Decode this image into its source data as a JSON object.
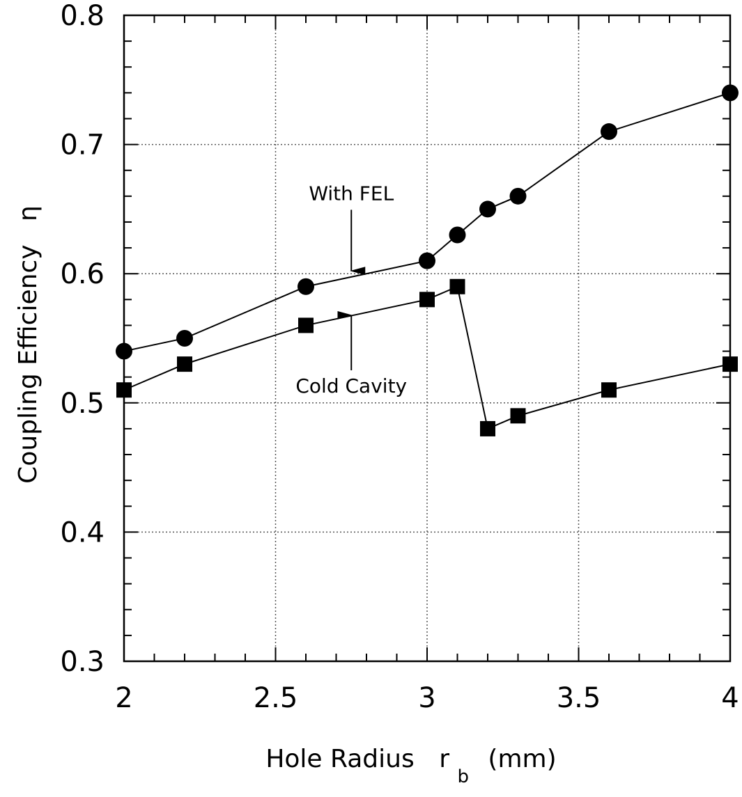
{
  "chart_data": {
    "type": "line",
    "xlabel": "Hole Radius",
    "xlabel_symbol": "r",
    "xlabel_subscript": "b",
    "xlabel_unit": "(mm)",
    "ylabel": "Coupling Efficiency",
    "ylabel_symbol": "η",
    "xlim": [
      2,
      4
    ],
    "ylim": [
      0.3,
      0.8
    ],
    "xticks": [
      2,
      2.5,
      3,
      3.5,
      4
    ],
    "xtick_labels": [
      "2",
      "2.5",
      "3",
      "3.5",
      "4"
    ],
    "yticks": [
      0.3,
      0.4,
      0.5,
      0.6,
      0.7,
      0.8
    ],
    "ytick_labels": [
      "0.3",
      "0.4",
      "0.5",
      "0.6",
      "0.7",
      "0.8"
    ],
    "x_minor_step": 0.1,
    "y_minor_step": 0.02,
    "grid": true,
    "series": [
      {
        "marker": "circle",
        "x": [
          2.0,
          2.2,
          2.6,
          3.0,
          3.1,
          3.2,
          3.3,
          3.6,
          4.0
        ],
        "values": [
          0.54,
          0.55,
          0.59,
          0.61,
          0.63,
          0.65,
          0.66,
          0.71,
          0.74
        ]
      },
      {
        "marker": "square",
        "x": [
          2.0,
          2.2,
          2.6,
          3.0,
          3.1,
          3.2,
          3.3,
          3.6,
          4.0
        ],
        "values": [
          0.51,
          0.53,
          0.56,
          0.58,
          0.59,
          0.48,
          0.49,
          0.51,
          0.53
        ]
      }
    ],
    "annotations": [
      {
        "text": "With FEL",
        "arrow": "down",
        "target_x": 2.75,
        "target_y": 0.6,
        "text_y": 0.657
      },
      {
        "text": "Cold Cavity",
        "arrow": "up",
        "target_x": 2.75,
        "target_y": 0.57,
        "text_y": 0.508
      }
    ]
  }
}
